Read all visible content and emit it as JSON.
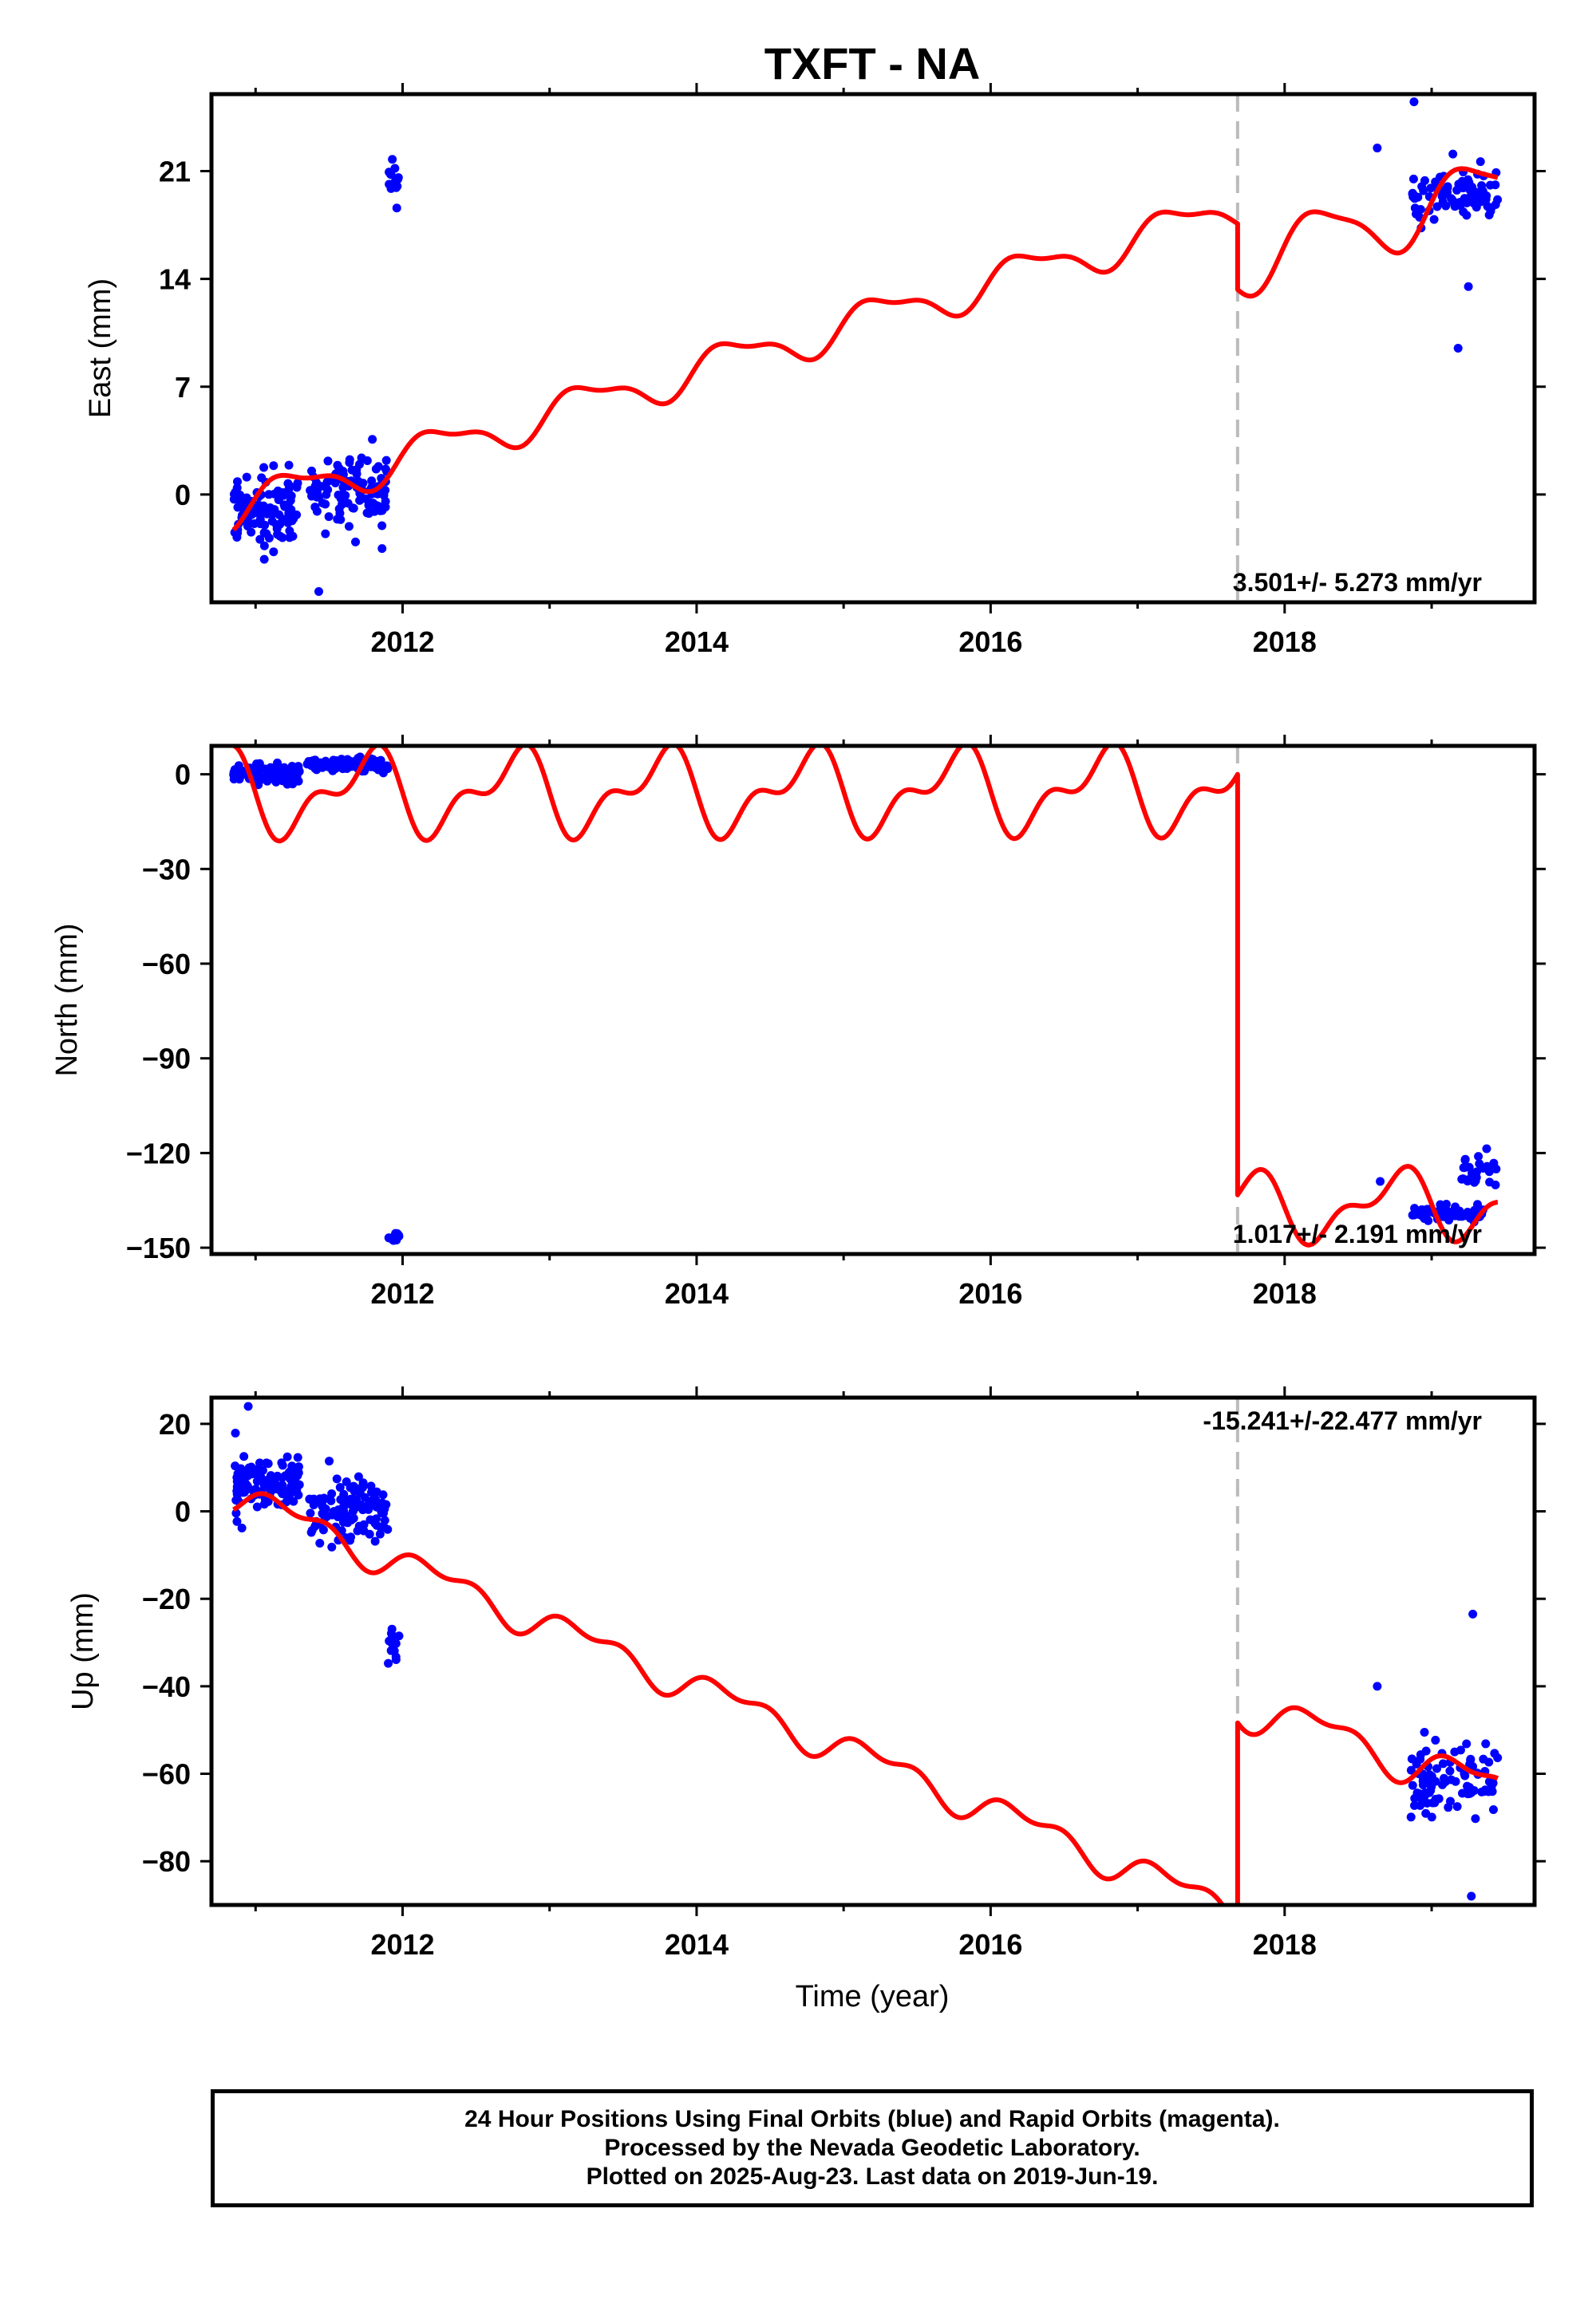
{
  "title": "TXFT - NA",
  "colors": {
    "data": "#0000ff",
    "model": "#ff0000",
    "break": "#bbbbbb",
    "frame": "#000000"
  },
  "xlabel": "Time (year)",
  "footer": {
    "line1": "24 Hour Positions Using Final Orbits (blue) and Rapid Orbits (magenta).",
    "line2": "Processed by the Nevada Geodetic Laboratory.",
    "line3": "Plotted on 2025-Aug-23. Last data on 2019-Jun-19."
  },
  "chart_data": [
    {
      "type": "scatter",
      "component": "east",
      "ylabel": "East (mm)",
      "rate_label": "3.501+/- 5.273 mm/yr",
      "xlim": [
        2010.7,
        2019.7
      ],
      "ylim": [
        -7,
        26
      ],
      "xticks": [
        2012,
        2014,
        2016,
        2018
      ],
      "xticks_minor": [
        2011,
        2013,
        2015,
        2017,
        2019
      ],
      "yticks": [
        0,
        7,
        14,
        21
      ],
      "step_epoch": 2017.68,
      "series": [
        {
          "kind": "points",
          "clusters": [
            {
              "x": [
                2010.85,
                2011.3
              ],
              "center": -1.0,
              "spread": 2.0,
              "n": 110
            },
            {
              "x": [
                2011.35,
                2011.9
              ],
              "center": 0.2,
              "spread": 2.2,
              "n": 110
            },
            {
              "x": [
                2011.9,
                2011.98
              ],
              "center": 20.5,
              "spread": 1.3,
              "n": 16
            },
            {
              "x": [
                2018.85,
                2019.45
              ],
              "center": 19.5,
              "spread": 1.5,
              "n": 90
            }
          ],
          "outliers": [
            [
              2018.63,
              22.5
            ],
            [
              2018.88,
              25.5
            ],
            [
              2019.18,
              9.5
            ],
            [
              2019.25,
              13.5
            ],
            [
              2011.43,
              -6.3
            ]
          ]
        },
        {
          "kind": "model",
          "segments": [
            {
              "x": [
                2010.85,
                2017.68
              ],
              "y0": -0.9,
              "trend": 2.85,
              "amp1": 1.2,
              "phase1": 0.0,
              "amp2": 0.45,
              "phase2": 0.55
            },
            {
              "x": [
                2017.68,
                2019.45
              ],
              "y0": 15.0,
              "trend": 2.8,
              "amp1": 2.0,
              "phase1": 0.0,
              "amp2": 0.5,
              "phase2": 0.55
            }
          ]
        }
      ]
    },
    {
      "type": "scatter",
      "component": "north",
      "ylabel": "North (mm)",
      "rate_label": "1.017+/- 2.191 mm/yr",
      "xlim": [
        2010.7,
        2019.7
      ],
      "ylim": [
        -152,
        9
      ],
      "xticks": [
        2012,
        2014,
        2016,
        2018
      ],
      "xticks_minor": [
        2011,
        2013,
        2015,
        2017,
        2019
      ],
      "yticks": [
        0,
        -30,
        -60,
        -90,
        -120,
        -150
      ],
      "step_epoch": 2017.68,
      "series": [
        {
          "kind": "points",
          "clusters": [
            {
              "x": [
                2010.85,
                2011.3
              ],
              "center": 0.0,
              "spread": 2.5,
              "n": 110
            },
            {
              "x": [
                2011.35,
                2011.9
              ],
              "center": 3.0,
              "spread": 2.0,
              "n": 110
            },
            {
              "x": [
                2011.9,
                2011.98
              ],
              "center": -147.0,
              "spread": 1.0,
              "n": 16
            },
            {
              "x": [
                2018.85,
                2019.35
              ],
              "center": -139.0,
              "spread": 2.0,
              "n": 70
            },
            {
              "x": [
                2019.2,
                2019.45
              ],
              "center": -125.0,
              "spread": 5.0,
              "n": 25
            }
          ],
          "outliers": [
            [
              2018.65,
              -129.0
            ]
          ]
        },
        {
          "kind": "model",
          "segments": [
            {
              "x": [
                2010.85,
                2017.68
              ],
              "y0": -6.0,
              "trend": 0.15,
              "amp1": 11.0,
              "phase1": 0.5,
              "amp2": 6.5,
              "phase2": 0.75
            },
            {
              "x": [
                2017.68,
                2019.45
              ],
              "y0": -137.5,
              "trend": 1.0,
              "amp1": 9.0,
              "phase1": 0.5,
              "amp2": 5.0,
              "phase2": 0.75
            }
          ]
        }
      ]
    },
    {
      "type": "scatter",
      "component": "up",
      "ylabel": "Up (mm)",
      "rate_label": "-15.241+/-22.477 mm/yr",
      "xlim": [
        2010.7,
        2019.7
      ],
      "ylim": [
        -90,
        26
      ],
      "xticks": [
        2012,
        2014,
        2016,
        2018
      ],
      "xticks_minor": [
        2011,
        2013,
        2015,
        2017,
        2019
      ],
      "yticks": [
        20,
        0,
        -20,
        -40,
        -60,
        -80
      ],
      "step_epoch": 2017.68,
      "series": [
        {
          "kind": "points",
          "clusters": [
            {
              "x": [
                2010.85,
                2011.3
              ],
              "center": 6.0,
              "spread": 6.0,
              "n": 110
            },
            {
              "x": [
                2011.35,
                2011.9
              ],
              "center": 0.0,
              "spread": 6.5,
              "n": 110
            },
            {
              "x": [
                2011.9,
                2011.98
              ],
              "center": -31.0,
              "spread": 4.0,
              "n": 16
            },
            {
              "x": [
                2018.85,
                2019.45
              ],
              "center": -61.0,
              "spread": 8.0,
              "n": 90
            }
          ],
          "outliers": [
            [
              2018.63,
              -40.0
            ],
            [
              2019.28,
              -23.5
            ],
            [
              2019.27,
              -88.0
            ],
            [
              2010.95,
              24.0
            ]
          ]
        },
        {
          "kind": "model",
          "segments": [
            {
              "x": [
                2010.85,
                2017.68
              ],
              "y0": 4.0,
              "trend": -14.0,
              "amp1": 3.0,
              "phase1": 0.0,
              "amp2": 2.0,
              "phase2": 0.6
            },
            {
              "x": [
                2017.68,
                2019.45
              ],
              "y0": -44.0,
              "trend": -11.0,
              "amp1": 4.0,
              "phase1": 0.0,
              "amp2": 2.0,
              "phase2": 0.6
            }
          ]
        }
      ]
    }
  ]
}
